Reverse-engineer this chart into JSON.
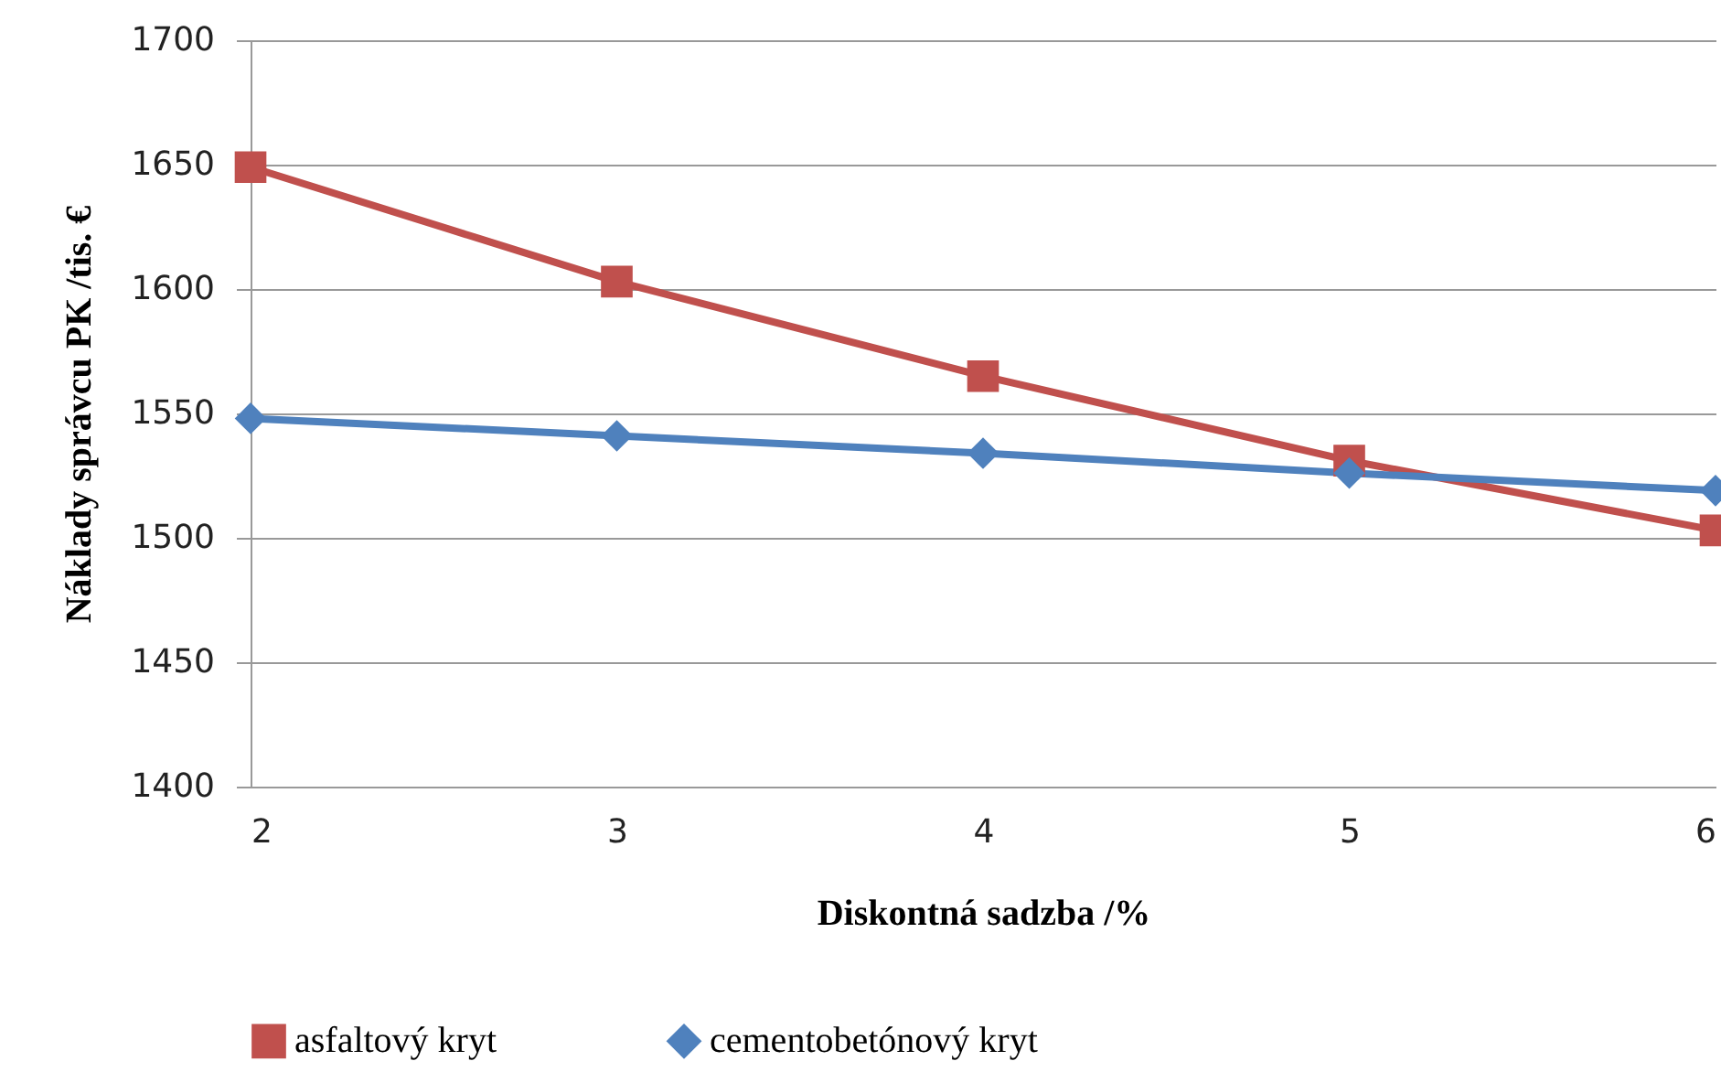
{
  "chart_data": {
    "type": "line",
    "xlabel": "Diskontná sadzba   /%",
    "ylabel": "Náklady správcu PK   /tis. €",
    "x": [
      2,
      3,
      4,
      5,
      6
    ],
    "series": [
      {
        "name": "asfaltový kryt",
        "color": "#c0504d",
        "marker": "square",
        "values": [
          1649,
          1603,
          1565,
          1531,
          1503
        ]
      },
      {
        "name": "cementobetónový kryt",
        "color": "#4f81bd",
        "marker": "diamond",
        "values": [
          1548,
          1541,
          1534,
          1526,
          1519
        ]
      }
    ],
    "xlim": [
      2,
      6
    ],
    "xticks": [
      2,
      3,
      4,
      5,
      6
    ],
    "ylim": [
      1400,
      1700
    ],
    "yticks": [
      1400,
      1450,
      1500,
      1550,
      1600,
      1650,
      1700
    ],
    "grid": "y",
    "legend": "bottom"
  }
}
